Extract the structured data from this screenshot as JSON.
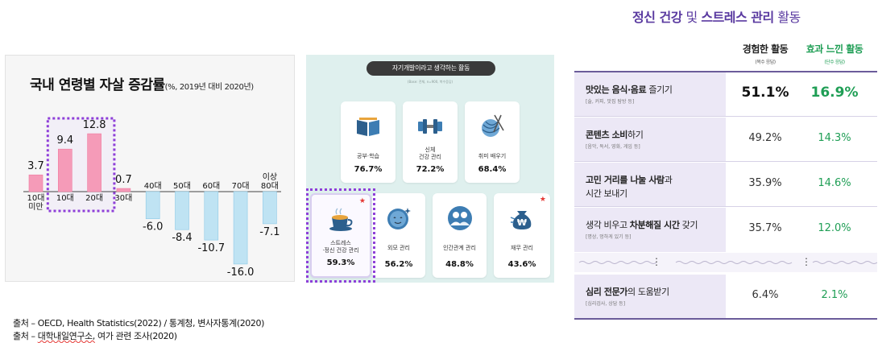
{
  "chart_data": {
    "type": "bar",
    "title": "국내 연령별 자살 증감률",
    "subtitle": "(%, 2019년 대비 2020년)",
    "categories": [
      "10대 미만",
      "10대",
      "20대",
      "30대",
      "40대",
      "50대",
      "60대",
      "70대",
      "80대 이상"
    ],
    "category_lines": [
      [
        "10대",
        "미만"
      ],
      [
        "10대"
      ],
      [
        "20대"
      ],
      [
        "30대"
      ],
      [
        "40대"
      ],
      [
        "50대"
      ],
      [
        "60대"
      ],
      [
        "70대"
      ],
      [
        "이상",
        "80대"
      ]
    ],
    "values": [
      3.7,
      9.4,
      12.8,
      0.7,
      -6.0,
      -8.4,
      -10.7,
      -16.0,
      -7.1
    ],
    "value_labels": [
      "3.7",
      "9.4",
      "12.8",
      "0.7",
      "-6.0",
      "-8.4",
      "-10.7",
      "-16.0",
      "-7.1"
    ],
    "highlighted": [
      "10대",
      "20대"
    ],
    "colors": {
      "positive": "#f59bb8",
      "negative": "#bfe3f3",
      "highlight_box": "#8e3fd8"
    }
  },
  "activities": {
    "header": "자기개발이라고 생각하는 활동",
    "header_bold": "활동",
    "note": "(Base: 전체, n=900, 복수응답)",
    "cards": [
      {
        "lines": [
          "공부·학습"
        ],
        "value": "76.7%",
        "icon": "book-icon",
        "star": false
      },
      {
        "lines": [
          "신체",
          "건강 관리"
        ],
        "value": "72.2%",
        "icon": "dumbbell-icon",
        "star": false
      },
      {
        "lines": [
          "취미 배우기"
        ],
        "value": "68.4%",
        "icon": "yarn-icon",
        "star": false
      },
      {
        "lines": [
          "스트레스",
          "·정신 건강 관리"
        ],
        "value": "59.3%",
        "icon": "coffee-cup-icon",
        "star": true
      },
      {
        "lines": [
          "외모 관리"
        ],
        "value": "56.2%",
        "icon": "face-icon",
        "star": false
      },
      {
        "lines": [
          "인간관계 관리"
        ],
        "value": "48.8%",
        "icon": "people-icon",
        "star": false
      },
      {
        "lines": [
          "재무 관리"
        ],
        "value": "43.6%",
        "icon": "money-bag-icon",
        "star": true
      }
    ],
    "star_symbol": "★"
  },
  "table": {
    "title_parts": [
      "정신 건강",
      " 및 ",
      "스트레스 관리",
      " 활동"
    ],
    "col1": {
      "label": "경험한 활동",
      "sub": "(복수 응답)"
    },
    "col2": {
      "label": "효과 느낀 활동",
      "sub": "(단수 응답)"
    },
    "rows": [
      {
        "bold": "맛있는 음식·음료",
        "rest": " 즐기기",
        "line2": "",
        "detail": "[술, 커피, 맛집 탐방 등]",
        "v1": "51.1%",
        "v2": "16.9%"
      },
      {
        "bold": "콘텐츠 소비",
        "rest": "하기",
        "line2": "",
        "detail": "[음악, 독서, 영화, 게임 등]",
        "v1": "49.2%",
        "v2": "14.3%"
      },
      {
        "bold": "고민 거리를 나눌 사람",
        "rest": "과",
        "line2": "시간 보내기",
        "detail": "",
        "v1": "35.9%",
        "v2": "14.6%"
      },
      {
        "pre": "생각 비우고 ",
        "bold": "차분해질 시간",
        "rest": " 갖기",
        "line2": "",
        "detail": "[명상, 멍하게 있기 등]",
        "v1": "35.7%",
        "v2": "12.0%"
      },
      {
        "bold": "심리 전문가",
        "rest": "의 도움받기",
        "line2": "",
        "detail": "[심리검사, 상담 등]",
        "v1": "6.4%",
        "v2": "2.1%"
      }
    ],
    "ellipsis": "⋮"
  },
  "sources": [
    {
      "text": "출처 – OECD, Health Statistics(2022) / 통계청, 변사자통계(2020)"
    },
    {
      "prefix": "출처 – ",
      "underlined": "대학내일연구소,",
      "suffix": " 여가 관련 조사(2020)"
    }
  ]
}
